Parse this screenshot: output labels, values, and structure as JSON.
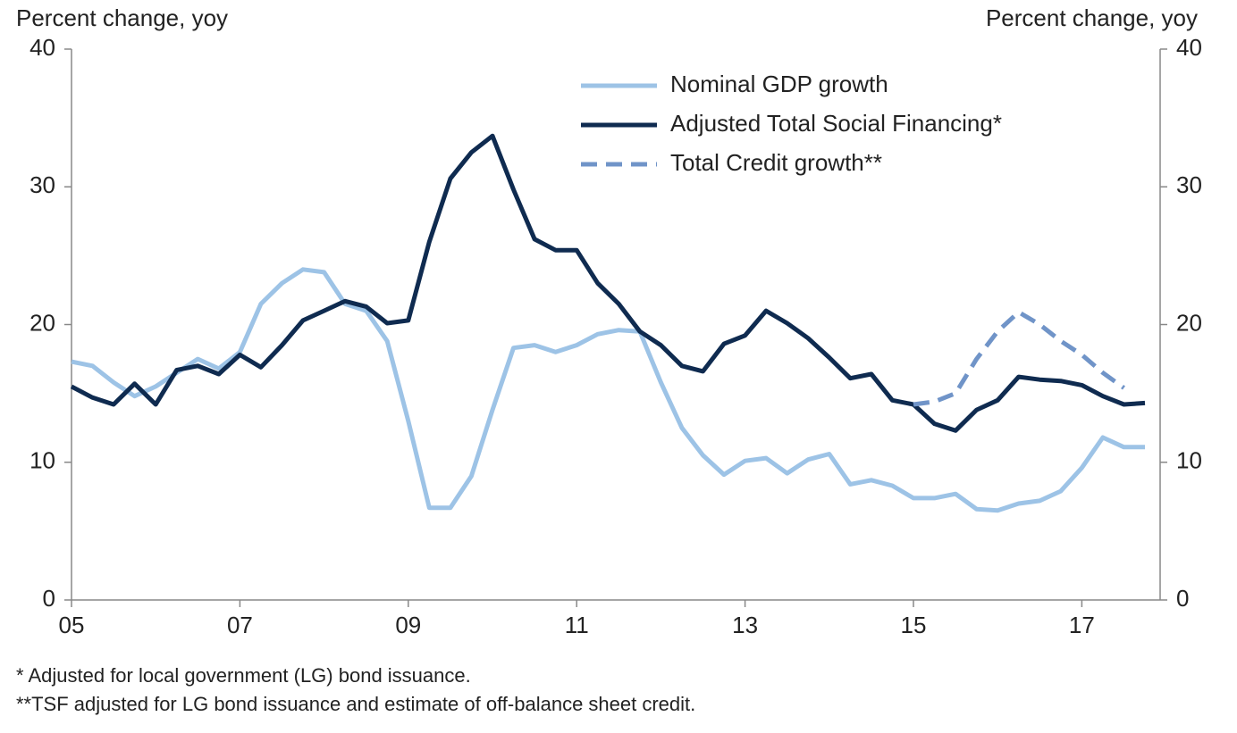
{
  "chart_data": {
    "type": "line",
    "y_label": "Percent change, yoy",
    "y2_label": "Percent change, yoy",
    "footnotes": [
      "* Adjusted for local government (LG) bond issuance.",
      "**TSF adjusted for LG bond issuance and estimate of off-balance sheet credit."
    ],
    "x": [
      2005,
      2005.25,
      2005.5,
      2005.75,
      2006,
      2006.25,
      2006.5,
      2006.75,
      2007,
      2007.25,
      2007.5,
      2007.75,
      2008,
      2008.25,
      2008.5,
      2008.75,
      2009,
      2009.25,
      2009.5,
      2009.75,
      2010,
      2010.25,
      2010.5,
      2010.75,
      2011,
      2011.25,
      2011.5,
      2011.75,
      2012,
      2012.25,
      2012.5,
      2012.75,
      2013,
      2013.25,
      2013.5,
      2013.75,
      2014,
      2014.25,
      2014.5,
      2014.75,
      2015,
      2015.25,
      2015.5,
      2015.75,
      2016,
      2016.25,
      2016.5,
      2016.75,
      2017,
      2017.25,
      2017.5,
      2017.75
    ],
    "series": [
      {
        "name": "Nominal GDP growth",
        "color": "#9dc3e6",
        "dash": false,
        "values": [
          17.3,
          17.0,
          15.8,
          14.8,
          15.5,
          16.5,
          17.5,
          16.8,
          18.0,
          21.5,
          23.0,
          24.0,
          23.8,
          21.5,
          21.0,
          18.8,
          13.0,
          6.7,
          6.7,
          9.0,
          13.8,
          18.3,
          18.5,
          18.0,
          18.5,
          19.3,
          19.6,
          19.5,
          15.8,
          12.5,
          10.5,
          9.1,
          10.1,
          10.3,
          9.2,
          10.2,
          10.6,
          8.4,
          8.7,
          8.3,
          7.4,
          7.4,
          7.7,
          6.6,
          6.5,
          7.0,
          7.2,
          7.9,
          9.6,
          11.8,
          11.1,
          11.1
        ]
      },
      {
        "name": "Adjusted Total Social Financing*",
        "color": "#0f2b50",
        "dash": false,
        "values": [
          15.5,
          14.7,
          14.2,
          15.7,
          14.2,
          16.7,
          17.0,
          16.4,
          17.8,
          16.9,
          18.5,
          20.3,
          21.0,
          21.7,
          21.3,
          20.1,
          20.3,
          26.0,
          30.6,
          32.5,
          33.7,
          29.8,
          26.2,
          25.4,
          25.4,
          23.0,
          21.5,
          19.5,
          18.5,
          17.0,
          16.6,
          18.6,
          19.2,
          21.0,
          20.1,
          19.0,
          17.6,
          16.1,
          16.4,
          14.5,
          14.2,
          12.8,
          12.3,
          13.8,
          14.5,
          16.2,
          16.0,
          15.9,
          15.6,
          14.8,
          14.2,
          14.3
        ]
      },
      {
        "name": "Total Credit growth**",
        "color": "#7094c8",
        "dash": true,
        "values": [
          null,
          null,
          null,
          null,
          null,
          null,
          null,
          null,
          null,
          null,
          null,
          null,
          null,
          null,
          null,
          null,
          null,
          null,
          null,
          null,
          null,
          null,
          null,
          null,
          null,
          null,
          null,
          null,
          null,
          null,
          null,
          null,
          null,
          null,
          null,
          null,
          null,
          null,
          null,
          null,
          14.2,
          14.4,
          15.0,
          17.5,
          19.5,
          20.9,
          20.0,
          18.8,
          17.8,
          16.5,
          15.4,
          null
        ]
      }
    ],
    "xlim": [
      2005,
      2017.93
    ],
    "xticks": [
      {
        "value": 2005,
        "label": "05"
      },
      {
        "value": 2007,
        "label": "07"
      },
      {
        "value": 2009,
        "label": "09"
      },
      {
        "value": 2011,
        "label": "11"
      },
      {
        "value": 2013,
        "label": "13"
      },
      {
        "value": 2015,
        "label": "15"
      },
      {
        "value": 2017,
        "label": "17"
      }
    ],
    "ylim": [
      0,
      40
    ],
    "yticks": [
      0,
      10,
      20,
      30,
      40
    ],
    "y2lim": [
      0,
      40
    ],
    "y2ticks": [
      0,
      10,
      20,
      30,
      40
    ]
  }
}
